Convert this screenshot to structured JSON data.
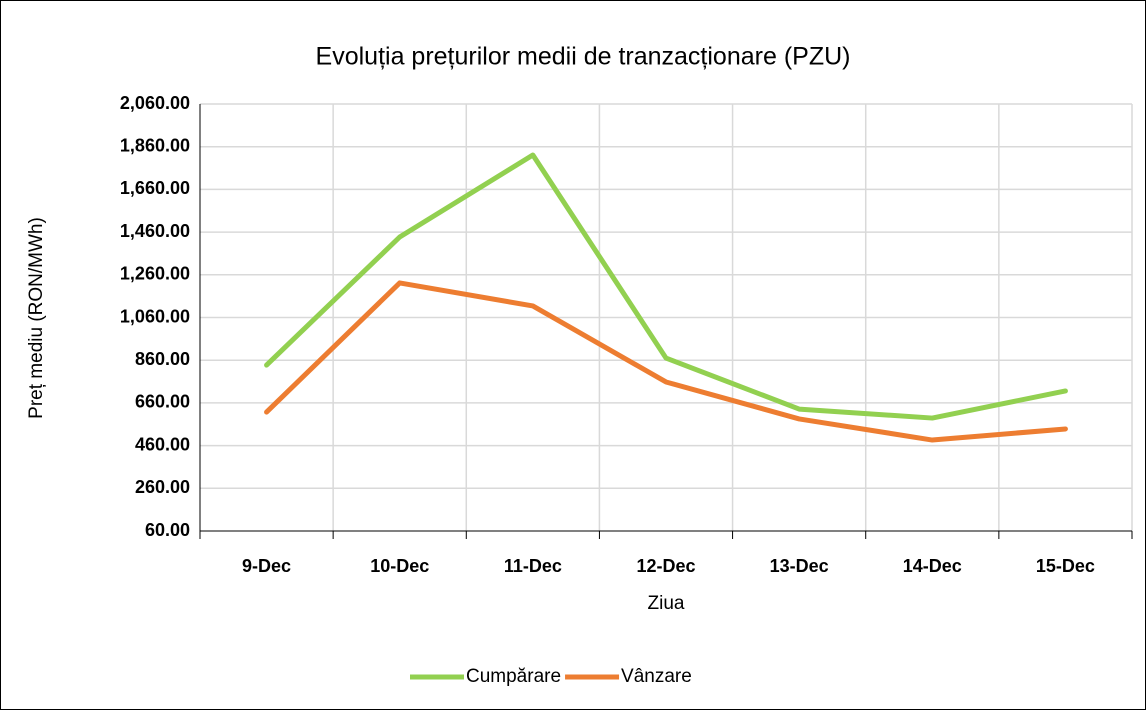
{
  "chart_data": {
    "type": "line",
    "title": "Evoluția prețurilor medii de tranzacționare (PZU)",
    "x_label": "Ziua",
    "y_label": "Preț mediu (RON/MWh)",
    "categories": [
      "9-Dec",
      "10-Dec",
      "11-Dec",
      "12-Dec",
      "13-Dec",
      "14-Dec",
      "15-Dec"
    ],
    "series": [
      {
        "name": "Cumpărare",
        "color": "#92d050",
        "values": [
          837,
          1437,
          1821,
          870,
          631,
          589,
          716
        ]
      },
      {
        "name": "Vânzare",
        "color": "#ed7d31",
        "values": [
          617,
          1222,
          1114,
          758,
          585,
          486,
          538
        ]
      }
    ],
    "ylim": [
      60,
      2060
    ],
    "yticks": [
      {
        "value": 60,
        "label": "60.00"
      },
      {
        "value": 260,
        "label": "260.00"
      },
      {
        "value": 460,
        "label": "460.00"
      },
      {
        "value": 660,
        "label": "660.00"
      },
      {
        "value": 860,
        "label": "860.00"
      },
      {
        "value": 1060,
        "label": "1,060.00"
      },
      {
        "value": 1260,
        "label": "1,260.00"
      },
      {
        "value": 1460,
        "label": "1,460.00"
      },
      {
        "value": 1660,
        "label": "1,660.00"
      },
      {
        "value": 1860,
        "label": "1,860.00"
      },
      {
        "value": 2060,
        "label": "2,060.00"
      }
    ],
    "grid": true,
    "legend": "bottom"
  }
}
